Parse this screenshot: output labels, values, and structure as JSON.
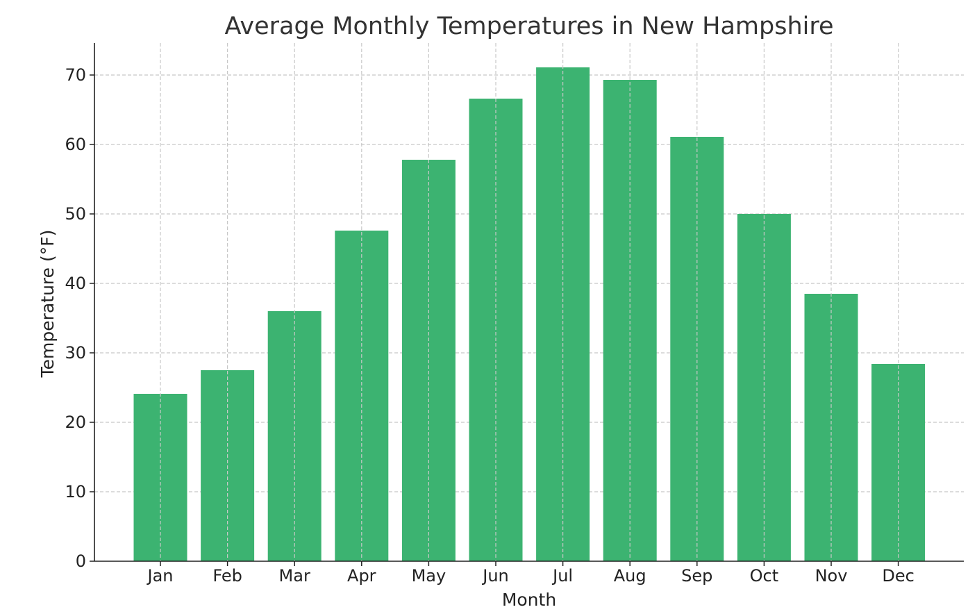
{
  "chart_data": {
    "type": "bar",
    "title": "Average Monthly Temperatures in New Hampshire",
    "xlabel": "Month",
    "ylabel": "Temperature (°F)",
    "categories": [
      "Jan",
      "Feb",
      "Mar",
      "Apr",
      "May",
      "Jun",
      "Jul",
      "Aug",
      "Sep",
      "Oct",
      "Nov",
      "Dec"
    ],
    "values": [
      24.1,
      27.5,
      36.0,
      47.6,
      57.8,
      66.6,
      71.1,
      69.3,
      61.1,
      50.0,
      38.5,
      28.4
    ],
    "ylim": [
      0,
      74.6
    ],
    "yticks": [
      0,
      10,
      20,
      30,
      40,
      50,
      60,
      70
    ],
    "grid": true,
    "bar_color": "#3cb371",
    "grid_color": "#c8c8c8",
    "axis_color": "#222222"
  }
}
